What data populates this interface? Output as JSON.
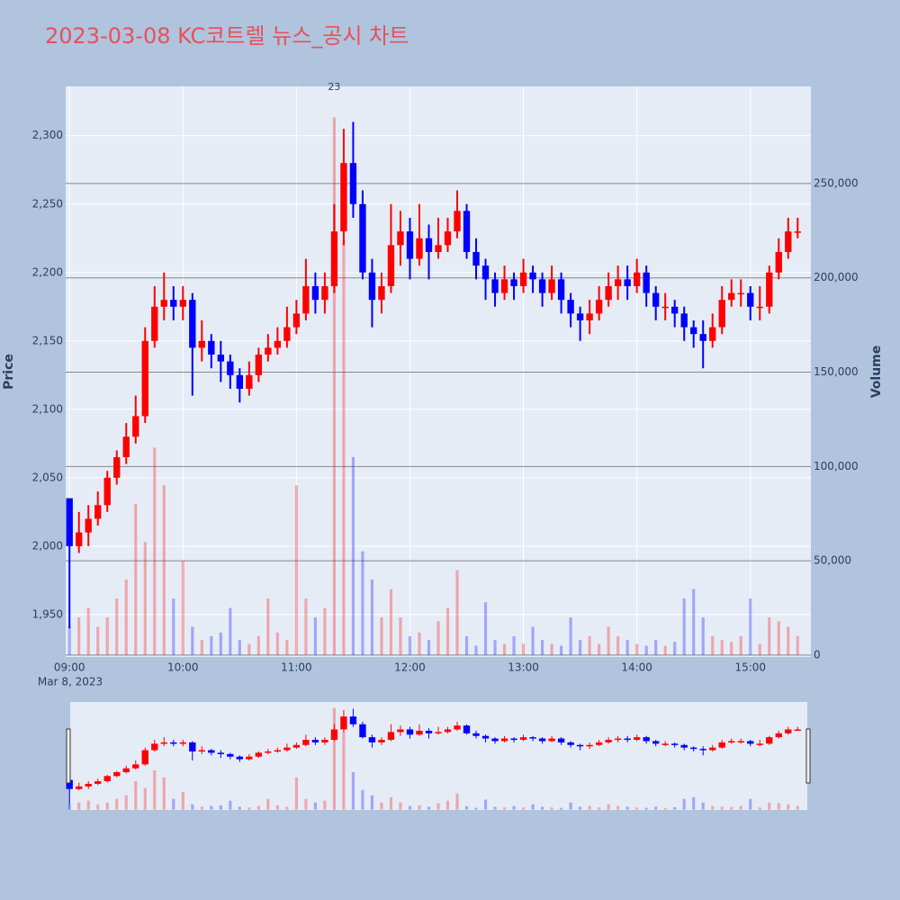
{
  "chart_data": {
    "type": "candlestick",
    "title": "2023-03-08 KC코트렐 뉴스_공시 차트",
    "y_label": "Price",
    "y2_label": "Volume",
    "x_date_label": "Mar 8, 2023",
    "increasing_color": "#ff0000",
    "decreasing_color": "#0000ff",
    "grid": true,
    "rangeslider": true,
    "xlim": [
      "08:58",
      "15:32"
    ],
    "xticks": [
      "09:00",
      "10:00",
      "11:00",
      "12:00",
      "13:00",
      "14:00",
      "15:00"
    ],
    "ylim": [
      1919,
      2336
    ],
    "yticks": [
      {
        "value": 1950,
        "label": "1,950"
      },
      {
        "value": 2000,
        "label": "2,000"
      },
      {
        "value": 2050,
        "label": "2,050"
      },
      {
        "value": 2100,
        "label": "2,100"
      },
      {
        "value": 2150,
        "label": "2,150"
      },
      {
        "value": 2200,
        "label": "2,200"
      },
      {
        "value": 2250,
        "label": "2,250"
      },
      {
        "value": 2300,
        "label": "2,300"
      }
    ],
    "y2lim": [
      -1000,
      301500
    ],
    "y2ticks": [
      0,
      {
        "value": 50000,
        "label": "50,000"
      },
      {
        "value": 100000,
        "label": "100,000"
      },
      {
        "value": 150000,
        "label": "150,000"
      },
      {
        "value": 200000,
        "label": "200,000"
      },
      {
        "value": 250000,
        "label": "250,000"
      }
    ],
    "annotations": [
      {
        "x": "11:20",
        "text": "23"
      }
    ],
    "x": [
      "09:00",
      "09:05",
      "09:10",
      "09:15",
      "09:20",
      "09:25",
      "09:30",
      "09:35",
      "09:40",
      "09:45",
      "09:50",
      "09:55",
      "10:00",
      "10:05",
      "10:10",
      "10:15",
      "10:20",
      "10:25",
      "10:30",
      "10:35",
      "10:40",
      "10:45",
      "10:50",
      "10:55",
      "11:00",
      "11:05",
      "11:10",
      "11:15",
      "11:20",
      "11:25",
      "11:30",
      "11:35",
      "11:40",
      "11:45",
      "11:50",
      "11:55",
      "12:00",
      "12:05",
      "12:10",
      "12:15",
      "12:20",
      "12:25",
      "12:30",
      "12:35",
      "12:40",
      "12:45",
      "12:50",
      "12:55",
      "13:00",
      "13:05",
      "13:10",
      "13:15",
      "13:20",
      "13:25",
      "13:30",
      "13:35",
      "13:40",
      "13:45",
      "13:50",
      "13:55",
      "14:00",
      "14:05",
      "14:10",
      "14:15",
      "14:20",
      "14:25",
      "14:30",
      "14:35",
      "14:40",
      "14:45",
      "14:50",
      "14:55",
      "15:00",
      "15:05",
      "15:10",
      "15:15",
      "15:20",
      "15:25"
    ],
    "open": [
      2035,
      2000,
      2010,
      2020,
      2030,
      2050,
      2065,
      2080,
      2095,
      2150,
      2175,
      2180,
      2175,
      2180,
      2145,
      2150,
      2140,
      2135,
      2125,
      2115,
      2125,
      2140,
      2145,
      2150,
      2160,
      2170,
      2190,
      2180,
      2190,
      2230,
      2280,
      2250,
      2200,
      2180,
      2190,
      2220,
      2230,
      2210,
      2225,
      2215,
      2220,
      2230,
      2245,
      2215,
      2205,
      2195,
      2185,
      2195,
      2190,
      2200,
      2195,
      2185,
      2195,
      2180,
      2170,
      2165,
      2170,
      2180,
      2190,
      2195,
      2190,
      2200,
      2185,
      2175,
      2175,
      2170,
      2160,
      2155,
      2150,
      2160,
      2180,
      2185,
      2185,
      2175,
      2175,
      2200,
      2215,
      2230
    ],
    "high": [
      2035,
      2025,
      2030,
      2040,
      2055,
      2070,
      2090,
      2110,
      2160,
      2190,
      2200,
      2190,
      2190,
      2185,
      2165,
      2155,
      2150,
      2140,
      2130,
      2135,
      2145,
      2155,
      2160,
      2175,
      2180,
      2210,
      2200,
      2200,
      2250,
      2305,
      2310,
      2260,
      2210,
      2200,
      2250,
      2245,
      2240,
      2250,
      2235,
      2240,
      2240,
      2260,
      2250,
      2225,
      2210,
      2200,
      2205,
      2200,
      2210,
      2205,
      2200,
      2205,
      2200,
      2185,
      2175,
      2180,
      2190,
      2200,
      2205,
      2205,
      2210,
      2205,
      2190,
      2185,
      2180,
      2175,
      2165,
      2165,
      2170,
      2190,
      2195,
      2195,
      2190,
      2190,
      2205,
      2225,
      2240,
      2240
    ],
    "low": [
      1940,
      1995,
      2000,
      2015,
      2025,
      2045,
      2060,
      2075,
      2090,
      2145,
      2165,
      2165,
      2165,
      2110,
      2135,
      2130,
      2120,
      2115,
      2105,
      2110,
      2120,
      2135,
      2140,
      2145,
      2155,
      2165,
      2170,
      2170,
      2185,
      2220,
      2240,
      2195,
      2160,
      2170,
      2185,
      2205,
      2195,
      2205,
      2195,
      2210,
      2215,
      2225,
      2210,
      2195,
      2180,
      2175,
      2180,
      2180,
      2185,
      2185,
      2175,
      2180,
      2170,
      2160,
      2150,
      2155,
      2165,
      2175,
      2180,
      2180,
      2185,
      2175,
      2165,
      2165,
      2160,
      2150,
      2145,
      2130,
      2145,
      2155,
      2175,
      2175,
      2165,
      2165,
      2170,
      2195,
      2210,
      2225
    ],
    "close": [
      2000,
      2010,
      2020,
      2030,
      2050,
      2065,
      2080,
      2095,
      2150,
      2175,
      2180,
      2175,
      2180,
      2145,
      2150,
      2140,
      2135,
      2125,
      2115,
      2125,
      2140,
      2145,
      2150,
      2160,
      2170,
      2190,
      2180,
      2190,
      2230,
      2280,
      2250,
      2200,
      2180,
      2190,
      2220,
      2230,
      2210,
      2225,
      2215,
      2220,
      2230,
      2245,
      2215,
      2205,
      2195,
      2185,
      2195,
      2190,
      2200,
      2195,
      2185,
      2195,
      2180,
      2170,
      2165,
      2170,
      2180,
      2190,
      2195,
      2190,
      2200,
      2185,
      2175,
      2175,
      2170,
      2160,
      2155,
      2150,
      2160,
      2180,
      2185,
      2185,
      2175,
      2175,
      2200,
      2215,
      2230,
      2230
    ],
    "volume": [
      15000,
      20000,
      25000,
      15000,
      20000,
      30000,
      40000,
      80000,
      60000,
      110000,
      90000,
      30000,
      50000,
      15000,
      8000,
      10000,
      12000,
      25000,
      8000,
      6000,
      10000,
      30000,
      12000,
      8000,
      90000,
      30000,
      20000,
      25000,
      285000,
      220000,
      105000,
      55000,
      40000,
      20000,
      35000,
      20000,
      10000,
      12000,
      8000,
      18000,
      25000,
      45000,
      10000,
      5000,
      28000,
      8000,
      6000,
      10000,
      6000,
      15000,
      8000,
      6000,
      5000,
      20000,
      8000,
      10000,
      6000,
      15000,
      10000,
      8000,
      6000,
      5000,
      8000,
      5000,
      7000,
      30000,
      35000,
      20000,
      10000,
      8000,
      7000,
      10000,
      30000,
      6000,
      20000,
      18000,
      15000,
      10000
    ]
  }
}
